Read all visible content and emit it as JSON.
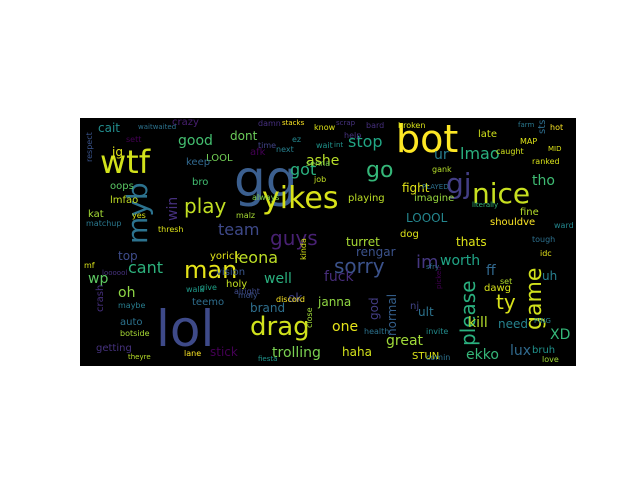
{
  "figure": {
    "background": "#ffffff",
    "panel_background": "#000000"
  },
  "chart_data": {
    "type": "wordcloud",
    "title": "",
    "words": [
      {
        "text": "gg",
        "color": "#3b5f8f",
        "weight": 1.0
      },
      {
        "text": "lol",
        "color": "#3e4a89",
        "weight": 0.98
      },
      {
        "text": "bot",
        "color": "#fde725",
        "weight": 0.85
      },
      {
        "text": "yikes",
        "color": "#d8e219",
        "weight": 0.8
      },
      {
        "text": "gj",
        "color": "#433e85",
        "weight": 0.72
      },
      {
        "text": "nice",
        "color": "#c8e020",
        "weight": 0.7
      },
      {
        "text": "wtf",
        "color": "#d2e21b",
        "weight": 0.66
      },
      {
        "text": "myb",
        "color": "#2c728e",
        "weight": 0.6
      },
      {
        "text": "drag",
        "color": "#d0e11c",
        "weight": 0.6
      },
      {
        "text": "play",
        "color": "#c2df23",
        "weight": 0.52
      },
      {
        "text": "game",
        "color": "#d0e11c",
        "weight": 0.52
      },
      {
        "text": "man",
        "color": "#e5e419",
        "weight": 0.48
      },
      {
        "text": "go",
        "color": "#35b779",
        "weight": 0.46
      },
      {
        "text": "please",
        "color": "#2ab07f",
        "weight": 0.44
      },
      {
        "text": "sorry",
        "color": "#3b528b",
        "weight": 0.44
      },
      {
        "text": "guys",
        "color": "#482173",
        "weight": 0.44
      },
      {
        "text": "got",
        "color": "#2ab07f",
        "weight": 0.42
      },
      {
        "text": "im",
        "color": "#453781",
        "weight": 0.42
      },
      {
        "text": "ty",
        "color": "#d8e219",
        "weight": 0.42
      },
      {
        "text": "lmao",
        "color": "#2ab07f",
        "weight": 0.38
      },
      {
        "text": "team",
        "color": "#3e4989",
        "weight": 0.38
      },
      {
        "text": "stop",
        "color": "#21a685",
        "weight": 0.36
      },
      {
        "text": "cant",
        "color": "#2db27d",
        "weight": 0.36
      },
      {
        "text": "leona",
        "color": "#bddf26",
        "weight": 0.36
      },
      {
        "text": "worth",
        "color": "#20a486",
        "weight": 0.34
      },
      {
        "text": "good",
        "color": "#44bf70",
        "weight": 0.34
      },
      {
        "text": "ur",
        "color": "#287c8e",
        "weight": 0.34
      },
      {
        "text": "tho",
        "color": "#3fbc73",
        "weight": 0.34
      },
      {
        "text": "one",
        "color": "#e5e419",
        "weight": 0.32
      },
      {
        "text": "ekko",
        "color": "#35b779",
        "weight": 0.32
      },
      {
        "text": "kill",
        "color": "#b5de2b",
        "weight": 0.32
      },
      {
        "text": "lux",
        "color": "#306a8e",
        "weight": 0.32
      },
      {
        "text": "ashe",
        "color": "#b8de29",
        "weight": 0.3
      },
      {
        "text": "dont",
        "color": "#6ccd5a",
        "weight": 0.3
      },
      {
        "text": "oh",
        "color": "#8ed645",
        "weight": 0.3
      },
      {
        "text": "well",
        "color": "#2ab07f",
        "weight": 0.3
      },
      {
        "text": "trolling",
        "color": "#7ad151",
        "weight": 0.3
      },
      {
        "text": "cait",
        "color": "#228d8d",
        "weight": 0.3
      },
      {
        "text": "great",
        "color": "#a0da39",
        "weight": 0.3
      },
      {
        "text": "fight",
        "color": "#e2e418",
        "weight": 0.28
      },
      {
        "text": "thats",
        "color": "#dde318",
        "weight": 0.28
      },
      {
        "text": "need",
        "color": "#26828e",
        "weight": 0.28
      },
      {
        "text": "ult",
        "color": "#2c738e",
        "weight": 0.28
      },
      {
        "text": "uh",
        "color": "#277f8e",
        "weight": 0.28
      },
      {
        "text": "XD",
        "color": "#35b779",
        "weight": 0.28
      },
      {
        "text": "fuck",
        "color": "#472d7b",
        "weight": 0.28
      },
      {
        "text": "ff",
        "color": "#31688e",
        "weight": 0.28
      },
      {
        "text": "top",
        "color": "#3e4c8a",
        "weight": 0.26
      },
      {
        "text": "wp",
        "color": "#5ec962",
        "weight": 0.26
      },
      {
        "text": "jg",
        "color": "#e2e418",
        "weight": 0.26
      },
      {
        "text": "win",
        "color": "#46307e",
        "weight": 0.26
      },
      {
        "text": "LOOOL",
        "color": "#24868e",
        "weight": 0.24
      },
      {
        "text": "haha",
        "color": "#d2e21b",
        "weight": 0.24
      },
      {
        "text": "normal",
        "color": "#35608d",
        "weight": 0.24
      },
      {
        "text": "janna",
        "color": "#90d743",
        "weight": 0.22
      },
      {
        "text": "brand",
        "color": "#2e6f8e",
        "weight": 0.22
      },
      {
        "text": "stick",
        "color": "#440154",
        "weight": 0.22
      },
      {
        "text": "rengar",
        "color": "#3b528b",
        "weight": 0.22
      },
      {
        "text": "turret",
        "color": "#a8db34",
        "weight": 0.22
      },
      {
        "text": "ok",
        "color": "#404387",
        "weight": 0.22
      },
      {
        "text": "god",
        "color": "#433d84",
        "weight": 0.22
      },
      {
        "text": "bruh",
        "color": "#20928c",
        "weight": 0.2
      },
      {
        "text": "late",
        "color": "#d0e11c",
        "weight": 0.2
      },
      {
        "text": "LOOL",
        "color": "#73d056",
        "weight": 0.2
      },
      {
        "text": "bro",
        "color": "#42be71",
        "weight": 0.2
      },
      {
        "text": "afk",
        "color": "#440154",
        "weight": 0.2
      },
      {
        "text": "yorick",
        "color": "#e2e418",
        "weight": 0.2
      },
      {
        "text": "teemo",
        "color": "#2e6e8e",
        "weight": 0.2
      },
      {
        "text": "auto",
        "color": "#2c728e",
        "weight": 0.2
      },
      {
        "text": "dog",
        "color": "#dde318",
        "weight": 0.2
      },
      {
        "text": "nj",
        "color": "#414487",
        "weight": 0.2
      },
      {
        "text": "imagine",
        "color": "#98d83e",
        "weight": 0.2
      },
      {
        "text": "playing",
        "color": "#bddf26",
        "weight": 0.18
      },
      {
        "text": "shouldve",
        "color": "#fde725",
        "weight": 0.18
      },
      {
        "text": "fine",
        "color": "#b5de2b",
        "weight": 0.18
      },
      {
        "text": "dawg",
        "color": "#d8e219",
        "weight": 0.18
      },
      {
        "text": "oops",
        "color": "#5ac864",
        "weight": 0.18
      },
      {
        "text": "kat",
        "color": "#a5db36",
        "weight": 0.18
      },
      {
        "text": "holy",
        "color": "#c5e021",
        "weight": 0.18
      },
      {
        "text": "crash",
        "color": "#462f7e",
        "weight": 0.18
      },
      {
        "text": "getting",
        "color": "#46327e",
        "weight": 0.18
      },
      {
        "text": "lmfao",
        "color": "#c2df23",
        "weight": 0.18
      },
      {
        "text": "vision",
        "color": "#39568c",
        "weight": 0.18
      },
      {
        "text": "keep",
        "color": "#31688e",
        "weight": 0.16
      },
      {
        "text": "STUN",
        "color": "#dde318",
        "weight": 0.16
      },
      {
        "text": "invite",
        "color": "#228c8d",
        "weight": 0.16
      },
      {
        "text": "comin",
        "color": "#2c728e",
        "weight": 0.16
      },
      {
        "text": "thresh",
        "color": "#dde318",
        "weight": 0.16
      },
      {
        "text": "matchup",
        "color": "#2a788e",
        "weight": 0.16
      },
      {
        "text": "malz",
        "color": "#a8db34",
        "weight": 0.16
      },
      {
        "text": "always",
        "color": "#7fd34e",
        "weight": 0.16
      },
      {
        "text": "crazy",
        "color": "#481f70",
        "weight": 0.16
      },
      {
        "text": "respect",
        "color": "#3a548c",
        "weight": 0.16
      },
      {
        "text": "tough",
        "color": "#2d708e",
        "weight": 0.14
      },
      {
        "text": "ward",
        "color": "#24878e",
        "weight": 0.14
      },
      {
        "text": "idc",
        "color": "#e5e419",
        "weight": 0.14
      },
      {
        "text": "set",
        "color": "#b5de2b",
        "weight": 0.14
      },
      {
        "text": "love",
        "color": "#a2da37",
        "weight": 0.14
      },
      {
        "text": "sts",
        "color": "#2e6e8e",
        "weight": 0.14
      },
      {
        "text": "caught",
        "color": "#d0e11c",
        "weight": 0.14
      },
      {
        "text": "ranked",
        "color": "#d8e219",
        "weight": 0.14
      },
      {
        "text": "MAP",
        "color": "#dde318",
        "weight": 0.14
      },
      {
        "text": "gank",
        "color": "#b5de2b",
        "weight": 0.14
      },
      {
        "text": "broken",
        "color": "#d8e219",
        "weight": 0.14
      },
      {
        "text": "health",
        "color": "#2c728e",
        "weight": 0.14
      },
      {
        "text": "discord",
        "color": "#fde725",
        "weight": 0.14
      },
      {
        "text": "maybe",
        "color": "#287d8e",
        "weight": 0.14
      },
      {
        "text": "botside",
        "color": "#a8db34",
        "weight": 0.14
      },
      {
        "text": "sett",
        "color": "#440154",
        "weight": 0.14
      },
      {
        "text": "yes",
        "color": "#d8e219",
        "weight": 0.14
      },
      {
        "text": "mf",
        "color": "#d8e219",
        "weight": 0.14
      },
      {
        "text": "lane",
        "color": "#fde725",
        "weight": 0.12
      },
      {
        "text": "know",
        "color": "#dde318",
        "weight": 0.12
      },
      {
        "text": "next",
        "color": "#27808e",
        "weight": 0.12
      },
      {
        "text": "time",
        "color": "#414487",
        "weight": 0.12
      },
      {
        "text": "ez",
        "color": "#24878e",
        "weight": 0.12
      },
      {
        "text": "wait",
        "color": "#1f948c",
        "weight": 0.12
      },
      {
        "text": "senna",
        "color": "#7ad151",
        "weight": 0.12
      },
      {
        "text": "job",
        "color": "#c2df23",
        "weight": 0.12
      },
      {
        "text": "moly",
        "color": "#3b528b",
        "weight": 0.12
      },
      {
        "text": "give",
        "color": "#1fa187",
        "weight": 0.12
      },
      {
        "text": "alright",
        "color": "#3e4a89",
        "weight": 0.12
      },
      {
        "text": "walk",
        "color": "#1f9a8a",
        "weight": 0.12
      },
      {
        "text": "damn",
        "color": "#462f7e",
        "weight": 0.12
      },
      {
        "text": "bard",
        "color": "#462f7e",
        "weight": 0.12
      },
      {
        "text": "hot",
        "color": "#fde725",
        "weight": 0.1
      },
      {
        "text": "help",
        "color": "#46327e",
        "weight": 0.1
      },
      {
        "text": "PLAYED",
        "color": "#2d708e",
        "weight": 0.1
      },
      {
        "text": "int",
        "color": "#21918c",
        "weight": 0.1
      },
      {
        "text": "kinda",
        "color": "#d8e219",
        "weight": 0.1
      },
      {
        "text": "close",
        "color": "#a0da39",
        "weight": 0.1
      },
      {
        "text": "PING",
        "color": "#26828e",
        "weight": 0.1
      },
      {
        "text": "literally",
        "color": "#35b779",
        "weight": 0.1
      },
      {
        "text": "picked",
        "color": "#440154",
        "weight": 0.1
      },
      {
        "text": "MID",
        "color": "#dde318",
        "weight": 0.1
      },
      {
        "text": "scrap",
        "color": "#46327e",
        "weight": 0.08
      },
      {
        "text": "stacks",
        "color": "#fde725",
        "weight": 0.08
      },
      {
        "text": "farm",
        "color": "#2a788e",
        "weight": 0.08
      },
      {
        "text": "fiesta",
        "color": "#1f948c",
        "weight": 0.08
      },
      {
        "text": "theyre",
        "color": "#b8de29",
        "weight": 0.08
      },
      {
        "text": "waitwaited",
        "color": "#2c728e",
        "weight": 0.07
      },
      {
        "text": "loooool",
        "color": "#46327e",
        "weight": 0.07
      },
      {
        "text": "sfry",
        "color": "#2c728e",
        "weight": 0.07
      }
    ]
  }
}
